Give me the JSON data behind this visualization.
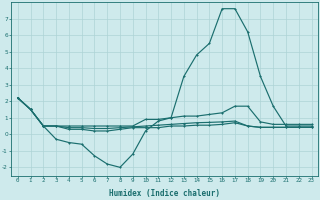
{
  "xlabel": "Humidex (Indice chaleur)",
  "background_color": "#ceeaec",
  "grid_color": "#aed4d6",
  "line_color": "#1a6e6e",
  "x_values": [
    0,
    1,
    2,
    3,
    4,
    5,
    6,
    7,
    8,
    9,
    10,
    11,
    12,
    13,
    14,
    15,
    16,
    17,
    18,
    19,
    20,
    21,
    22,
    23
  ],
  "line1_y": [
    2.2,
    1.5,
    0.5,
    0.5,
    0.5,
    0.5,
    0.5,
    0.5,
    0.5,
    0.5,
    0.9,
    0.9,
    1.0,
    1.1,
    1.1,
    1.2,
    1.3,
    1.7,
    1.7,
    0.75,
    0.6,
    0.6,
    0.6,
    0.6
  ],
  "line2_y": [
    2.2,
    1.5,
    0.5,
    -0.3,
    -0.5,
    -0.6,
    -1.3,
    -1.8,
    -2.0,
    -1.2,
    0.2,
    0.8,
    1.0,
    3.5,
    4.8,
    5.5,
    7.6,
    7.6,
    6.2,
    3.5,
    1.7,
    0.5,
    0.5,
    0.5
  ],
  "line3_y": [
    2.2,
    1.5,
    0.5,
    0.5,
    0.3,
    0.3,
    0.2,
    0.2,
    0.3,
    0.4,
    0.4,
    0.4,
    0.5,
    0.5,
    0.55,
    0.55,
    0.6,
    0.7,
    0.5,
    0.42,
    0.42,
    0.42,
    0.42,
    0.42
  ],
  "line4_y": [
    2.2,
    1.5,
    0.5,
    0.5,
    0.4,
    0.4,
    0.35,
    0.35,
    0.4,
    0.45,
    0.5,
    0.55,
    0.6,
    0.65,
    0.7,
    0.72,
    0.75,
    0.8,
    0.5,
    0.42,
    0.42,
    0.42,
    0.42,
    0.42
  ],
  "ylim": [
    -2.5,
    8.0
  ],
  "xlim": [
    -0.5,
    23.5
  ]
}
